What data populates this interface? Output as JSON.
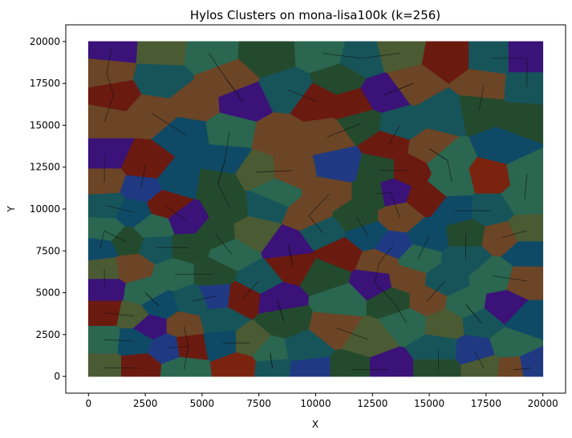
{
  "chart_data": {
    "type": "scatter",
    "title": "Hylos Clusters on mona-lisa100k (k=256)",
    "xlabel": "X",
    "ylabel": "Y",
    "xlim": [
      -1000,
      21000
    ],
    "ylim": [
      -1000,
      21000
    ],
    "xticks": [
      0,
      2500,
      5000,
      7500,
      10000,
      12500,
      15000,
      17500,
      20000
    ],
    "yticks": [
      0,
      2500,
      5000,
      7500,
      10000,
      12500,
      15000,
      17500,
      20000
    ],
    "grid": false,
    "legend": "none",
    "points": 100000,
    "clusters": 256,
    "palette": [
      "#3a1278",
      "#6b1a10",
      "#6b4526",
      "#244a2e",
      "#2a6650",
      "#0e4a66",
      "#1f3a82",
      "#4a5a33",
      "#16545a",
      "#7a2410"
    ],
    "centers": [
      {
        "x": 1000,
        "y": 19600,
        "c": 0
      },
      {
        "x": 3300,
        "y": 19500,
        "c": 7
      },
      {
        "x": 5300,
        "y": 19300,
        "c": 4
      },
      {
        "x": 7900,
        "y": 19200,
        "c": 3
      },
      {
        "x": 10300,
        "y": 19300,
        "c": 4
      },
      {
        "x": 12000,
        "y": 19000,
        "c": 8
      },
      {
        "x": 13700,
        "y": 19300,
        "c": 7
      },
      {
        "x": 15800,
        "y": 19000,
        "c": 1
      },
      {
        "x": 17700,
        "y": 19000,
        "c": 8
      },
      {
        "x": 19300,
        "y": 19000,
        "c": 0
      },
      {
        "x": 800,
        "y": 18100,
        "c": 2
      },
      {
        "x": 3200,
        "y": 17700,
        "c": 8
      },
      {
        "x": 6100,
        "y": 17700,
        "c": 2
      },
      {
        "x": 11000,
        "y": 17700,
        "c": 3
      },
      {
        "x": 14300,
        "y": 17500,
        "c": 2
      },
      {
        "x": 17400,
        "y": 17400,
        "c": 2
      },
      {
        "x": 19300,
        "y": 17300,
        "c": 8
      },
      {
        "x": 1100,
        "y": 16800,
        "c": 1
      },
      {
        "x": 2800,
        "y": 15700,
        "c": 2
      },
      {
        "x": 4700,
        "y": 16300,
        "c": 2
      },
      {
        "x": 6800,
        "y": 16400,
        "c": 0
      },
      {
        "x": 8800,
        "y": 17100,
        "c": 8
      },
      {
        "x": 10100,
        "y": 16400,
        "c": 1
      },
      {
        "x": 11600,
        "y": 16200,
        "c": 1
      },
      {
        "x": 13000,
        "y": 16800,
        "c": 0
      },
      {
        "x": 12000,
        "y": 15100,
        "c": 3
      },
      {
        "x": 13700,
        "y": 15000,
        "c": 8
      },
      {
        "x": 15700,
        "y": 15700,
        "c": 8
      },
      {
        "x": 17200,
        "y": 15900,
        "c": 3
      },
      {
        "x": 19100,
        "y": 15300,
        "c": 3
      },
      {
        "x": 700,
        "y": 15200,
        "c": 2
      },
      {
        "x": 4300,
        "y": 14400,
        "c": 5
      },
      {
        "x": 6200,
        "y": 14600,
        "c": 4
      },
      {
        "x": 8400,
        "y": 14300,
        "c": 2
      },
      {
        "x": 10500,
        "y": 14300,
        "c": 2
      },
      {
        "x": 13200,
        "y": 13800,
        "c": 1
      },
      {
        "x": 15000,
        "y": 13600,
        "c": 2
      },
      {
        "x": 18300,
        "y": 13700,
        "c": 5
      },
      {
        "x": 700,
        "y": 13200,
        "c": 0
      },
      {
        "x": 2500,
        "y": 12600,
        "c": 1
      },
      {
        "x": 6000,
        "y": 12900,
        "c": 5
      },
      {
        "x": 7400,
        "y": 12200,
        "c": 7
      },
      {
        "x": 9000,
        "y": 12300,
        "c": 2
      },
      {
        "x": 11000,
        "y": 12600,
        "c": 6
      },
      {
        "x": 12800,
        "y": 12300,
        "c": 3
      },
      {
        "x": 14100,
        "y": 12300,
        "c": 1
      },
      {
        "x": 15800,
        "y": 12900,
        "c": 4
      },
      {
        "x": 17700,
        "y": 11900,
        "c": 9
      },
      {
        "x": 19300,
        "y": 12100,
        "c": 4
      },
      {
        "x": 700,
        "y": 11600,
        "c": 2
      },
      {
        "x": 2300,
        "y": 11200,
        "c": 6
      },
      {
        "x": 4000,
        "y": 11700,
        "c": 5
      },
      {
        "x": 5700,
        "y": 11500,
        "c": 3
      },
      {
        "x": 8200,
        "y": 10900,
        "c": 4
      },
      {
        "x": 10600,
        "y": 10900,
        "c": 2
      },
      {
        "x": 12600,
        "y": 10900,
        "c": 3
      },
      {
        "x": 13300,
        "y": 11000,
        "c": 0
      },
      {
        "x": 14900,
        "y": 10600,
        "c": 1
      },
      {
        "x": 16000,
        "y": 11600,
        "c": 4
      },
      {
        "x": 19200,
        "y": 10600,
        "c": 4
      },
      {
        "x": 800,
        "y": 10200,
        "c": 8
      },
      {
        "x": 2000,
        "y": 9800,
        "c": 5
      },
      {
        "x": 3400,
        "y": 10200,
        "c": 1
      },
      {
        "x": 4300,
        "y": 9300,
        "c": 0
      },
      {
        "x": 6200,
        "y": 10100,
        "c": 3
      },
      {
        "x": 7800,
        "y": 10200,
        "c": 8
      },
      {
        "x": 9700,
        "y": 9600,
        "c": 2
      },
      {
        "x": 11800,
        "y": 9500,
        "c": 3
      },
      {
        "x": 13700,
        "y": 9500,
        "c": 2
      },
      {
        "x": 16100,
        "y": 9900,
        "c": 5
      },
      {
        "x": 17700,
        "y": 9900,
        "c": 8
      },
      {
        "x": 700,
        "y": 8700,
        "c": 4
      },
      {
        "x": 1700,
        "y": 8000,
        "c": 3
      },
      {
        "x": 2900,
        "y": 8900,
        "c": 4
      },
      {
        "x": 5600,
        "y": 8500,
        "c": 3
      },
      {
        "x": 7300,
        "y": 8600,
        "c": 7
      },
      {
        "x": 8800,
        "y": 7800,
        "c": 0
      },
      {
        "x": 10300,
        "y": 8600,
        "c": 8
      },
      {
        "x": 12300,
        "y": 8400,
        "c": 5
      },
      {
        "x": 13400,
        "y": 7800,
        "c": 6
      },
      {
        "x": 15000,
        "y": 8400,
        "c": 5
      },
      {
        "x": 16600,
        "y": 8500,
        "c": 3
      },
      {
        "x": 18200,
        "y": 8300,
        "c": 2
      },
      {
        "x": 19300,
        "y": 8700,
        "c": 7
      },
      {
        "x": 500,
        "y": 7600,
        "c": 5
      },
      {
        "x": 3000,
        "y": 7700,
        "c": 8
      },
      {
        "x": 4400,
        "y": 7700,
        "c": 3
      },
      {
        "x": 6300,
        "y": 7300,
        "c": 4
      },
      {
        "x": 9000,
        "y": 6600,
        "c": 1
      },
      {
        "x": 11100,
        "y": 7300,
        "c": 1
      },
      {
        "x": 12800,
        "y": 6800,
        "c": 2
      },
      {
        "x": 14500,
        "y": 7000,
        "c": 4
      },
      {
        "x": 16600,
        "y": 7000,
        "c": 8
      },
      {
        "x": 19300,
        "y": 7400,
        "c": 5
      },
      {
        "x": 700,
        "y": 6400,
        "c": 7
      },
      {
        "x": 1900,
        "y": 6500,
        "c": 2
      },
      {
        "x": 3800,
        "y": 6100,
        "c": 4
      },
      {
        "x": 5500,
        "y": 6100,
        "c": 3
      },
      {
        "x": 7500,
        "y": 5700,
        "c": 8
      },
      {
        "x": 10400,
        "y": 6000,
        "c": 3
      },
      {
        "x": 12600,
        "y": 5600,
        "c": 0
      },
      {
        "x": 14000,
        "y": 5800,
        "c": 2
      },
      {
        "x": 15700,
        "y": 5700,
        "c": 8
      },
      {
        "x": 17800,
        "y": 6000,
        "c": 4
      },
      {
        "x": 19300,
        "y": 5700,
        "c": 2
      },
      {
        "x": 700,
        "y": 5200,
        "c": 0
      },
      {
        "x": 2500,
        "y": 5000,
        "c": 4
      },
      {
        "x": 4600,
        "y": 4500,
        "c": 8
      },
      {
        "x": 5600,
        "y": 4800,
        "c": 6
      },
      {
        "x": 6800,
        "y": 4700,
        "c": 1
      },
      {
        "x": 8300,
        "y": 4600,
        "c": 0
      },
      {
        "x": 11100,
        "y": 4500,
        "c": 4
      },
      {
        "x": 13400,
        "y": 4500,
        "c": 3
      },
      {
        "x": 14900,
        "y": 4500,
        "c": 2
      },
      {
        "x": 16600,
        "y": 4300,
        "c": 4
      },
      {
        "x": 18300,
        "y": 4100,
        "c": 0
      },
      {
        "x": 700,
        "y": 3800,
        "c": 1
      },
      {
        "x": 2000,
        "y": 3600,
        "c": 7
      },
      {
        "x": 3100,
        "y": 4200,
        "c": 5
      },
      {
        "x": 2700,
        "y": 3000,
        "c": 0
      },
      {
        "x": 4200,
        "y": 3000,
        "c": 2
      },
      {
        "x": 5800,
        "y": 3300,
        "c": 8
      },
      {
        "x": 8600,
        "y": 3300,
        "c": 3
      },
      {
        "x": 10900,
        "y": 2900,
        "c": 2
      },
      {
        "x": 14000,
        "y": 3200,
        "c": 4
      },
      {
        "x": 15700,
        "y": 3100,
        "c": 7
      },
      {
        "x": 17300,
        "y": 3200,
        "c": 8
      },
      {
        "x": 19300,
        "y": 3400,
        "c": 5
      },
      {
        "x": 700,
        "y": 2200,
        "c": 4
      },
      {
        "x": 2000,
        "y": 2100,
        "c": 5
      },
      {
        "x": 3500,
        "y": 1700,
        "c": 6
      },
      {
        "x": 4400,
        "y": 1800,
        "c": 1
      },
      {
        "x": 5900,
        "y": 2000,
        "c": 5
      },
      {
        "x": 7100,
        "y": 2000,
        "c": 7
      },
      {
        "x": 8000,
        "y": 1400,
        "c": 4
      },
      {
        "x": 9500,
        "y": 1600,
        "c": 8
      },
      {
        "x": 12300,
        "y": 2200,
        "c": 7
      },
      {
        "x": 15400,
        "y": 1600,
        "c": 8
      },
      {
        "x": 17000,
        "y": 1500,
        "c": 6
      },
      {
        "x": 18600,
        "y": 1900,
        "c": 4
      },
      {
        "x": 700,
        "y": 500,
        "c": 7
      },
      {
        "x": 2200,
        "y": 500,
        "c": 1
      },
      {
        "x": 4200,
        "y": 400,
        "c": 4
      },
      {
        "x": 6600,
        "y": 600,
        "c": 9
      },
      {
        "x": 8100,
        "y": 500,
        "c": 8
      },
      {
        "x": 9700,
        "y": 400,
        "c": 6
      },
      {
        "x": 11600,
        "y": 400,
        "c": 3
      },
      {
        "x": 13200,
        "y": 400,
        "c": 0
      },
      {
        "x": 15400,
        "y": 400,
        "c": 3
      },
      {
        "x": 17400,
        "y": 500,
        "c": 7
      },
      {
        "x": 18700,
        "y": 400,
        "c": 2
      },
      {
        "x": 19500,
        "y": 500,
        "c": 6
      }
    ]
  }
}
